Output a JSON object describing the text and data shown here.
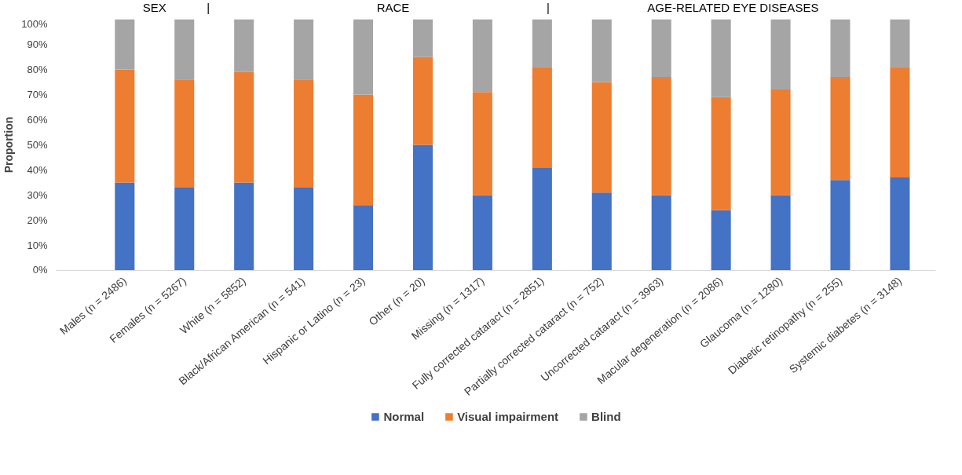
{
  "chart_data": {
    "type": "bar",
    "stacked": true,
    "ylabel": "Proportion",
    "categories": [
      "Males (n = 2486)",
      "Females (n = 5267)",
      "White (n = 5852)",
      "Black/African American (n = 541)",
      "Hispanic or Latino (n = 23)",
      "Other (n = 20)",
      "Missing (n = 1317)",
      "Fully corrected cataract (n = 2851)",
      "Partially corrected cataract (n = 752)",
      "Uncorrected cataract (n = 3963)",
      "Macular degeneration (n = 2086)",
      "Glaucoma (n = 1280)",
      "Diabetic retinopathy (n = 255)",
      "Systemic diabetes (n = 3148)"
    ],
    "series": [
      {
        "name": "Normal",
        "color": "#4472c4",
        "values": [
          35,
          33,
          35,
          33,
          26,
          50,
          30,
          41,
          31,
          30,
          24,
          30,
          36,
          37
        ]
      },
      {
        "name": "Visual impairment",
        "color": "#ed7d31",
        "values": [
          45,
          43,
          44,
          43,
          44,
          35,
          41,
          40,
          44,
          47,
          45,
          42,
          41,
          44
        ]
      },
      {
        "name": "Blind",
        "color": "#a5a5a5",
        "values": [
          20,
          24,
          21,
          24,
          30,
          15,
          29,
          19,
          25,
          23,
          31,
          28,
          23,
          19
        ]
      }
    ],
    "ylim": [
      0,
      100
    ],
    "yticks": [
      {
        "value": 0,
        "label": "0%"
      },
      {
        "value": 10,
        "label": "10%"
      },
      {
        "value": 20,
        "label": "20%"
      },
      {
        "value": 30,
        "label": "30%"
      },
      {
        "value": 40,
        "label": "40%"
      },
      {
        "value": 50,
        "label": "50%"
      },
      {
        "value": 60,
        "label": "60%"
      },
      {
        "value": 70,
        "label": "70%"
      },
      {
        "value": 80,
        "label": "80%"
      },
      {
        "value": 90,
        "label": "90%"
      },
      {
        "value": 100,
        "label": "100%"
      }
    ],
    "annotations": [
      "SEX",
      "|",
      "RACE",
      "|",
      "AGE-RELATED EYE DISEASES"
    ],
    "grid": false,
    "legend": "bottom"
  }
}
